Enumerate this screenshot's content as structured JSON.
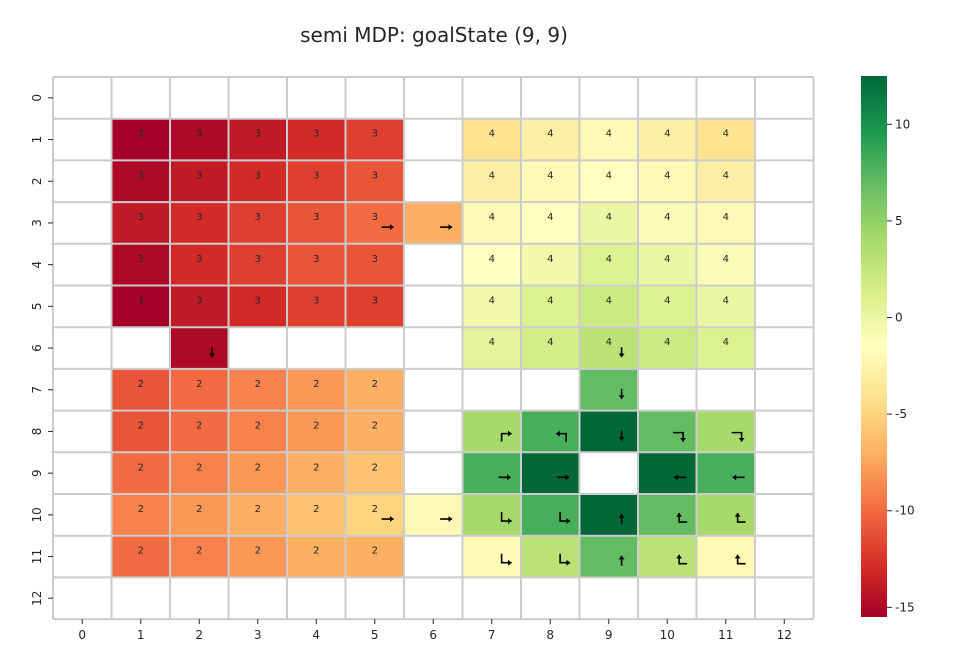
{
  "chart_data": {
    "type": "heatmap",
    "title": "semi MDP: goalState (9, 9)",
    "x_ticks": [
      "0",
      "1",
      "2",
      "3",
      "4",
      "5",
      "6",
      "7",
      "8",
      "9",
      "10",
      "11",
      "12"
    ],
    "y_ticks": [
      "0",
      "1",
      "2",
      "3",
      "4",
      "5",
      "6",
      "7",
      "8",
      "9",
      "10",
      "11",
      "12"
    ],
    "colorbar": {
      "colormap": "RdYlGn",
      "vmin": -15.5,
      "vmax": 12.5,
      "ticks": [
        "-15",
        "-10",
        "-5",
        "0",
        "5",
        "10"
      ],
      "tick_values": [
        -15,
        -10,
        -5,
        0,
        5,
        10
      ],
      "colors": [
        "#a50026",
        "#d73027",
        "#f46d43",
        "#fdae61",
        "#fee08b",
        "#ffffbf",
        "#d9ef8b",
        "#a6d96a",
        "#66bd63",
        "#1a9850",
        "#006837"
      ]
    },
    "grid": true,
    "values": [
      [
        null,
        null,
        null,
        null,
        null,
        null,
        null,
        null,
        null,
        null,
        null,
        null,
        null
      ],
      [
        null,
        -15.5,
        -15,
        -14,
        -13,
        -12,
        null,
        -4,
        -3,
        -2,
        -3,
        -4,
        null
      ],
      [
        null,
        -15,
        -14,
        -13,
        -12,
        -11,
        null,
        -3,
        -2,
        -1.5,
        -2,
        -3,
        null
      ],
      [
        null,
        -14,
        -13,
        -12,
        -11,
        -10,
        -7,
        -2,
        -1.5,
        0,
        -1,
        -2,
        null
      ],
      [
        null,
        -15,
        -13,
        -12,
        -11,
        -11,
        null,
        -1.5,
        -0.5,
        1,
        0,
        -1,
        null
      ],
      [
        null,
        -15.5,
        -14,
        -13,
        -12,
        -12,
        null,
        -0.5,
        1,
        2,
        1,
        0,
        null
      ],
      [
        null,
        null,
        -15,
        null,
        null,
        null,
        null,
        0.5,
        1.5,
        3,
        2,
        1,
        null
      ],
      [
        null,
        -11,
        -10,
        -9,
        -8,
        -7,
        null,
        null,
        null,
        7,
        null,
        null,
        null
      ],
      [
        null,
        -11,
        -10,
        -9,
        -8,
        -7,
        null,
        4,
        8,
        13,
        7,
        4,
        null
      ],
      [
        null,
        -10,
        -9,
        -8,
        -7,
        -6,
        null,
        8,
        12.5,
        null,
        12.5,
        8,
        null
      ],
      [
        null,
        -9,
        -8,
        -7,
        -6,
        -5,
        -2,
        4,
        8,
        13,
        7,
        4,
        null
      ],
      [
        null,
        -10,
        -9,
        -8,
        -7,
        -7,
        null,
        -2,
        3,
        7,
        3,
        -2,
        null
      ],
      [
        null,
        null,
        null,
        null,
        null,
        null,
        null,
        null,
        null,
        null,
        null,
        null,
        null
      ]
    ],
    "labels": [
      [
        "",
        "",
        "",
        "",
        "",
        "",
        "",
        "",
        "",
        "",
        "",
        "",
        ""
      ],
      [
        "",
        "3",
        "3",
        "3",
        "3",
        "3",
        "",
        "4",
        "4",
        "4",
        "4",
        "4",
        ""
      ],
      [
        "",
        "3",
        "3",
        "3",
        "3",
        "3",
        "",
        "4",
        "4",
        "4",
        "4",
        "4",
        ""
      ],
      [
        "",
        "3",
        "3",
        "3",
        "3",
        "3",
        "",
        "4",
        "4",
        "4",
        "4",
        "4",
        ""
      ],
      [
        "",
        "3",
        "3",
        "3",
        "3",
        "3",
        "",
        "4",
        "4",
        "4",
        "4",
        "4",
        ""
      ],
      [
        "",
        "3",
        "3",
        "3",
        "3",
        "3",
        "",
        "4",
        "4",
        "4",
        "4",
        "4",
        ""
      ],
      [
        "",
        "",
        "",
        "",
        "",
        "",
        "",
        "4",
        "4",
        "4",
        "4",
        "4",
        ""
      ],
      [
        "",
        "2",
        "2",
        "2",
        "2",
        "2",
        "",
        "",
        "",
        "",
        "",
        "",
        ""
      ],
      [
        "",
        "2",
        "2",
        "2",
        "2",
        "2",
        "",
        "",
        "",
        "",
        "",
        "",
        ""
      ],
      [
        "",
        "2",
        "2",
        "2",
        "2",
        "2",
        "",
        "",
        "",
        "",
        "",
        "",
        ""
      ],
      [
        "",
        "2",
        "2",
        "2",
        "2",
        "2",
        "",
        "",
        "",
        "",
        "",
        "",
        ""
      ],
      [
        "",
        "2",
        "2",
        "2",
        "2",
        "2",
        "",
        "",
        "",
        "",
        "",
        "",
        ""
      ],
      [
        "",
        "",
        "",
        "",
        "",
        "",
        "",
        "",
        "",
        "",
        "",
        "",
        ""
      ]
    ],
    "arrows": [
      {
        "row": 3,
        "col": 5,
        "shape": "right"
      },
      {
        "row": 3,
        "col": 6,
        "shape": "right"
      },
      {
        "row": 6,
        "col": 2,
        "shape": "down"
      },
      {
        "row": 6,
        "col": 9,
        "shape": "down"
      },
      {
        "row": 7,
        "col": 9,
        "shape": "down"
      },
      {
        "row": 8,
        "col": 7,
        "shape": "up-right"
      },
      {
        "row": 8,
        "col": 8,
        "shape": "up-left"
      },
      {
        "row": 8,
        "col": 9,
        "shape": "down"
      },
      {
        "row": 8,
        "col": 10,
        "shape": "right-down"
      },
      {
        "row": 8,
        "col": 11,
        "shape": "right-down"
      },
      {
        "row": 9,
        "col": 7,
        "shape": "right"
      },
      {
        "row": 9,
        "col": 8,
        "shape": "right"
      },
      {
        "row": 9,
        "col": 10,
        "shape": "left"
      },
      {
        "row": 9,
        "col": 11,
        "shape": "left"
      },
      {
        "row": 10,
        "col": 5,
        "shape": "right"
      },
      {
        "row": 10,
        "col": 6,
        "shape": "right"
      },
      {
        "row": 10,
        "col": 7,
        "shape": "up-to-right"
      },
      {
        "row": 10,
        "col": 8,
        "shape": "up-to-right"
      },
      {
        "row": 10,
        "col": 9,
        "shape": "up"
      },
      {
        "row": 10,
        "col": 10,
        "shape": "left-up"
      },
      {
        "row": 10,
        "col": 11,
        "shape": "left-up"
      },
      {
        "row": 11,
        "col": 7,
        "shape": "up-to-right"
      },
      {
        "row": 11,
        "col": 8,
        "shape": "up-to-right"
      },
      {
        "row": 11,
        "col": 9,
        "shape": "up"
      },
      {
        "row": 11,
        "col": 10,
        "shape": "left-up"
      },
      {
        "row": 11,
        "col": 11,
        "shape": "left-up"
      }
    ]
  }
}
